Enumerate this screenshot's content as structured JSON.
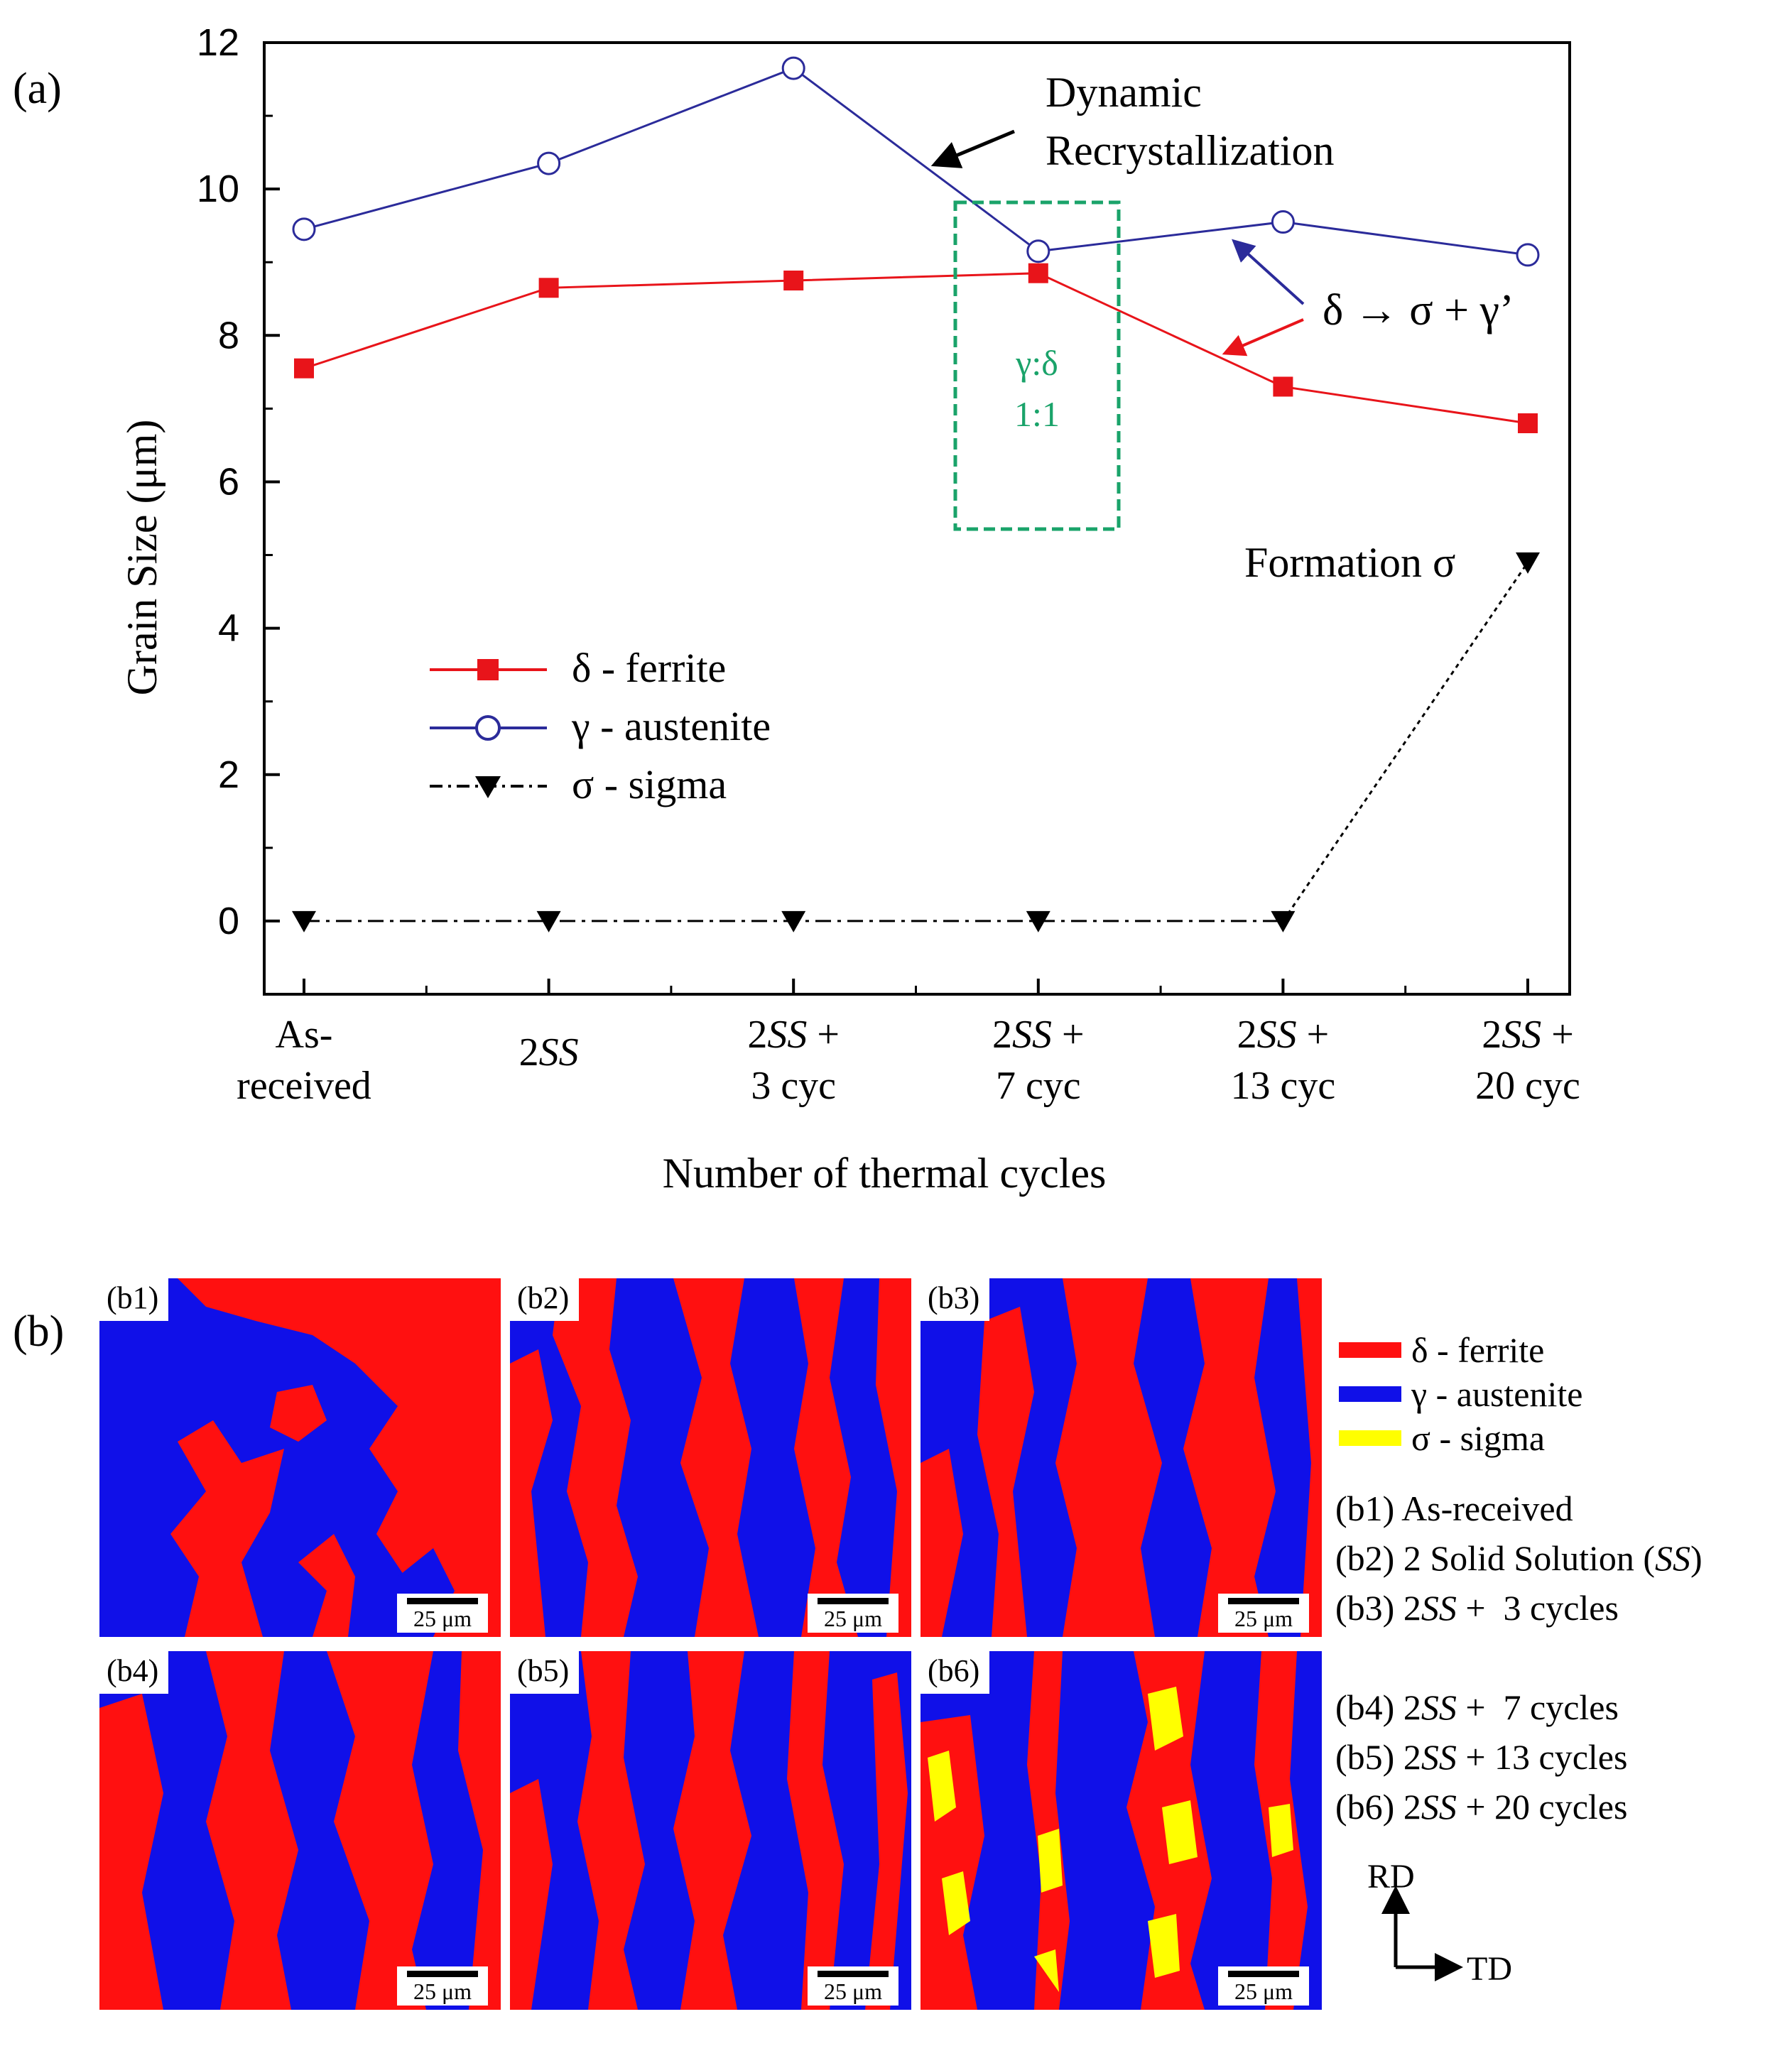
{
  "panel_a_label": "(a)",
  "panel_b_label": "(b)",
  "chart_data": {
    "type": "line",
    "title": "",
    "xlabel": "Number of thermal cycles",
    "ylabel": "Grain Size (μm)",
    "ylim": [
      -1,
      12
    ],
    "yticks": [
      0,
      2,
      4,
      6,
      8,
      10,
      12
    ],
    "categories": [
      [
        "As-",
        "received"
      ],
      [
        "2SS"
      ],
      [
        "2SS +",
        "3 cyc"
      ],
      [
        "2SS +",
        "7 cyc"
      ],
      [
        "2SS +",
        "13 cyc"
      ],
      [
        "2SS +",
        "20 cyc"
      ]
    ],
    "series": [
      {
        "name": "δ - ferrite",
        "color": "#e8141a",
        "marker": "square",
        "line": "solid",
        "values": [
          7.55,
          8.65,
          8.75,
          8.85,
          7.3,
          6.8
        ]
      },
      {
        "name": "γ - austenite",
        "color": "#2b2b9a",
        "marker": "open-circle",
        "line": "solid",
        "values": [
          9.45,
          10.35,
          11.65,
          9.15,
          9.55,
          9.1
        ]
      },
      {
        "name": "σ - sigma",
        "color": "#000000",
        "marker": "down-triangle",
        "line": "dashdot",
        "values": [
          0,
          0,
          0,
          0,
          0,
          4.9
        ]
      }
    ],
    "annotations": {
      "dynamic_recrystallization": [
        "Dynamic",
        "Recrystallization"
      ],
      "transformation": "δ → σ + γ’",
      "ratio_box": [
        "γ:δ",
        "1:1"
      ],
      "formation": "Formation σ"
    },
    "legend_position": "lower-left"
  },
  "maps": [
    {
      "label": "(b1)",
      "scale": "25 μm"
    },
    {
      "label": "(b2)",
      "scale": "25 μm"
    },
    {
      "label": "(b3)",
      "scale": "25 μm"
    },
    {
      "label": "(b4)",
      "scale": "25 μm"
    },
    {
      "label": "(b5)",
      "scale": "25 μm"
    },
    {
      "label": "(b6)",
      "scale": "25 μm"
    }
  ],
  "map_legend": [
    {
      "name": "δ - ferrite",
      "color": "#ff1010"
    },
    {
      "name": "γ - austenite",
      "color": "#1010e8"
    },
    {
      "name": "σ - sigma",
      "color": "#ffff00"
    }
  ],
  "conditions": [
    {
      "id": "(b1)",
      "pre": "As-received",
      "ital": "",
      "post": ""
    },
    {
      "id": "(b2)",
      "pre": "2 Solid Solution (",
      "ital": "SS",
      "post": ")"
    },
    {
      "id": "(b3)",
      "pre": "2",
      "ital": "SS",
      "post": " +  3 cycles"
    },
    {
      "id": "(b4)",
      "pre": "2",
      "ital": "SS",
      "post": " +  7 cycles"
    },
    {
      "id": "(b5)",
      "pre": "2",
      "ital": "SS",
      "post": " + 13 cycles"
    },
    {
      "id": "(b6)",
      "pre": "2",
      "ital": "SS",
      "post": " + 20 cycles"
    }
  ],
  "directions": {
    "rd": "RD",
    "td": "TD"
  }
}
